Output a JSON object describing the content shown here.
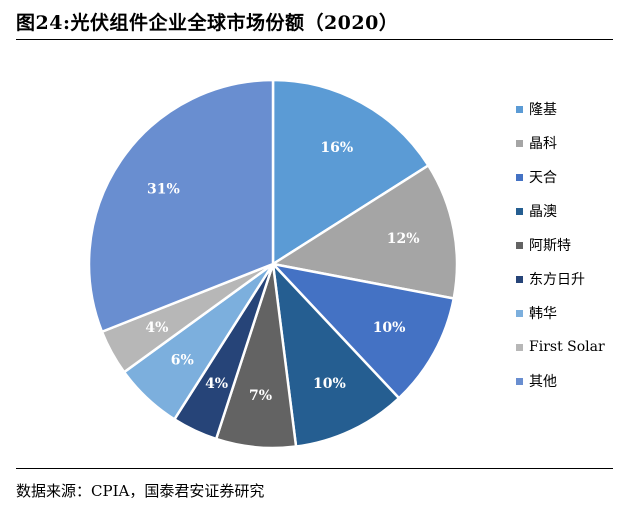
{
  "title": "图24:光伏组件企业全球市场份额（2020）",
  "source": "数据来源：CPIA，国泰君安证券研究",
  "chart_data": {
    "type": "pie",
    "title": "图24:光伏组件企业全球市场份额（2020）",
    "value_unit": "%",
    "start_angle_deg": 0,
    "direction": "clockwise",
    "legend_position": "right",
    "slices": [
      {
        "label": "隆基",
        "value": 16,
        "display": "16%",
        "color": "#5B9BD5"
      },
      {
        "label": "晶科",
        "value": 12,
        "display": "12%",
        "color": "#A5A5A5"
      },
      {
        "label": "天合",
        "value": 10,
        "display": "10%",
        "color": "#4472C4"
      },
      {
        "label": "晶澳",
        "value": 10,
        "display": "10%",
        "color": "#255E91"
      },
      {
        "label": "阿斯特",
        "value": 7,
        "display": "7%",
        "color": "#636363"
      },
      {
        "label": "东方日升",
        "value": 4,
        "display": "4%",
        "color": "#264478"
      },
      {
        "label": "韩华",
        "value": 6,
        "display": "6%",
        "color": "#7CAFDD"
      },
      {
        "label": "First Solar",
        "value": 4,
        "display": "4%",
        "color": "#B7B7B7"
      },
      {
        "label": "其他",
        "value": 31,
        "display": "31%",
        "color": "#698ED0"
      }
    ]
  }
}
